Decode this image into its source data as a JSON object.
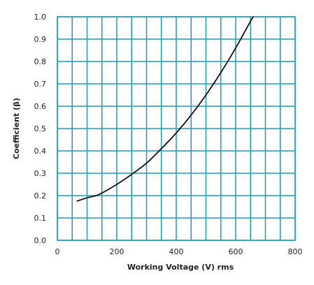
{
  "chart_data": {
    "type": "line",
    "title": "",
    "xlabel": "Working Voltage (V) rms",
    "ylabel": "Coefficient (β)",
    "xlim": [
      0,
      800
    ],
    "ylim": [
      0,
      1.0
    ],
    "x_ticks": [
      0,
      200,
      400,
      600,
      800
    ],
    "x_tick_labels": [
      "0",
      "200",
      "400",
      "600",
      "800"
    ],
    "y_ticks": [
      0.0,
      0.1,
      0.2,
      0.3,
      0.4,
      0.5,
      0.6,
      0.7,
      0.8,
      0.9,
      1.0
    ],
    "y_tick_labels": [
      "0.0",
      "0.1",
      "0.2",
      "0.3",
      "0.4",
      "0.5",
      "0.6",
      "0.7",
      "0.8",
      "0.9",
      "1.0"
    ],
    "x_minor_step": 50,
    "grid": true,
    "grid_color": "#1a9db5",
    "line_color": "#111111",
    "series": [
      {
        "x": [
          65,
          100,
          140,
          200,
          250,
          300,
          350,
          400,
          450,
          500,
          550,
          600,
          650,
          660
        ],
        "y": [
          0.175,
          0.19,
          0.205,
          0.25,
          0.295,
          0.345,
          0.41,
          0.48,
          0.56,
          0.65,
          0.75,
          0.86,
          0.98,
          1.0
        ]
      }
    ]
  }
}
